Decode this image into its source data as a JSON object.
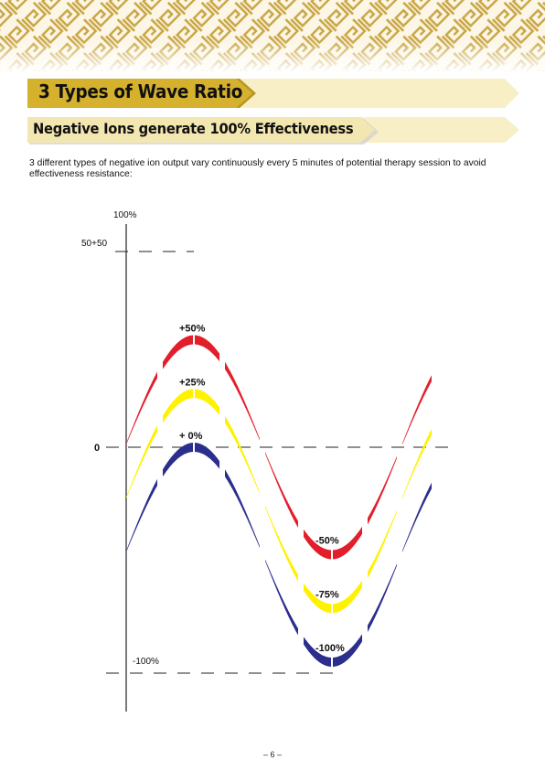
{
  "header": {
    "title": "3 Types of Wave Ratio",
    "subtitle": "Negative Ions generate 100% Effectiveness"
  },
  "intro": "3 different types of negative ion output vary continuously every 5 minutes of potential therapy session to avoid effectiveness resistance:",
  "chart_data": {
    "type": "line",
    "y_tick_labels": {
      "top": "100%",
      "upper": "50+50",
      "zero": "0",
      "bottom": "-100%"
    },
    "series": [
      {
        "color": "#e31e2b",
        "peak_label": "+50%",
        "trough_label": "-50%",
        "peak": 50,
        "trough": -50
      },
      {
        "color": "#fff200",
        "peak_label": "+25%",
        "trough_label": "-75%",
        "peak": 25,
        "trough": -75
      },
      {
        "color": "#2b2e8c",
        "peak_label": "+ 0%",
        "trough_label": "-100%",
        "peak": 0,
        "trough": -100
      }
    ]
  },
  "footer": {
    "page_number": "– 6 –"
  },
  "colors": {
    "gold": "#d5b12e",
    "banner_light": "#f8efc6",
    "pattern": "#c9a441"
  }
}
